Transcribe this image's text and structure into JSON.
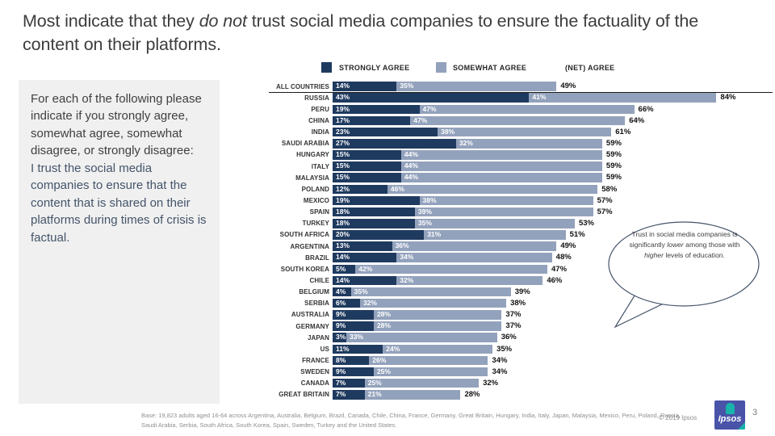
{
  "title": {
    "part1": "Most indicate that they ",
    "part2": "do not",
    "part3": " trust social media companies to ensure the factuality of the content on their platforms."
  },
  "legend": {
    "strongly": "STRONGLY AGREE",
    "somewhat": "SOMEWHAT AGREE",
    "net": "(NET) AGREE"
  },
  "sidebar": {
    "instruction": "For each of the following please indicate if you strongly agree, somewhat agree, somewhat disagree, or strongly disagree:",
    "statement": "I trust the social media companies to ensure that the content that is shared on their platforms during times of crisis is factual."
  },
  "callout": {
    "p1": "Trust in social media companies is significantly ",
    "italic1": "lower",
    "p2": " among those with ",
    "italic2": "higher",
    "p3": " levels of education."
  },
  "chart_data": {
    "type": "bar",
    "orientation": "horizontal",
    "stacked": true,
    "value_suffix": "%",
    "x_max": 88,
    "legend_position": "top",
    "categories": [
      "ALL COUNTRIES",
      "RUSSIA",
      "PERU",
      "CHINA",
      "INDIA",
      "SAUDI ARABIA",
      "HUNGARY",
      "ITALY",
      "MALAYSIA",
      "POLAND",
      "MEXICO",
      "SPAIN",
      "TURKEY",
      "SOUTH AFRICA",
      "ARGENTINA",
      "BRAZIL",
      "SOUTH KOREA",
      "CHILE",
      "BELGIUM",
      "SERBIA",
      "AUSTRALIA",
      "GERMANY",
      "JAPAN",
      "US",
      "FRANCE",
      "SWEDEN",
      "CANADA",
      "GREAT BRITAIN"
    ],
    "series": [
      {
        "name": "STRONGLY AGREE",
        "color": "#1F3A5F",
        "values": [
          14,
          43,
          19,
          17,
          23,
          27,
          15,
          15,
          15,
          12,
          19,
          18,
          18,
          20,
          13,
          14,
          5,
          14,
          4,
          6,
          9,
          9,
          3,
          11,
          8,
          9,
          7,
          7
        ]
      },
      {
        "name": "SOMEWHAT AGREE",
        "color": "#93A2BC",
        "values": [
          35,
          41,
          47,
          47,
          38,
          32,
          44,
          44,
          44,
          46,
          38,
          39,
          35,
          31,
          36,
          34,
          42,
          32,
          35,
          32,
          28,
          28,
          33,
          24,
          26,
          25,
          25,
          21
        ]
      }
    ],
    "net_series": {
      "name": "(NET) AGREE",
      "values": [
        49,
        84,
        66,
        64,
        61,
        59,
        59,
        59,
        59,
        58,
        57,
        57,
        53,
        51,
        49,
        48,
        47,
        46,
        39,
        38,
        37,
        37,
        36,
        35,
        34,
        34,
        32,
        28
      ]
    }
  },
  "footer": {
    "base": "Base: 19,823 adults aged 16-64 across Argentina, Australia, Belgium, Brazil, Canada, Chile, China, France, Germany, Great Britain, Hungary, India, Italy, Japan, Malaysia, Mexico, Peru, Poland, Russia, Saudi Arabia, Serbia, South Africa, South Korea, Spain, Sweden, Turkey and the United States.",
    "copyright": "© 2019 Ipsos",
    "logo_text": "Ipsos",
    "page_number": "3"
  },
  "colors": {
    "strongly_agree": "#1F3A5F",
    "somewhat_agree": "#93A2BC",
    "accent_blue": "#44546A",
    "panel_bg": "#F0F0F0",
    "callout_border": "#44546A"
  }
}
